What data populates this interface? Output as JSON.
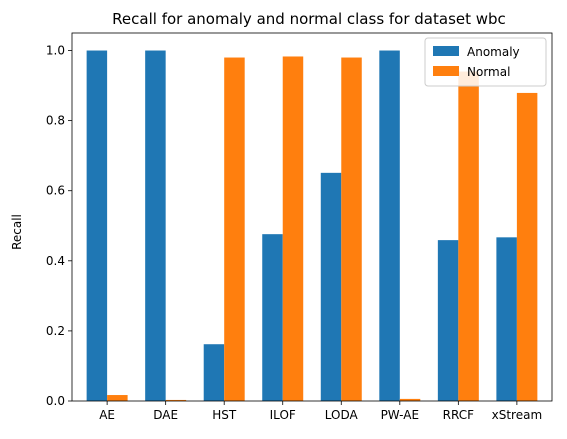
{
  "chart_data": {
    "type": "bar",
    "title": "Recall for anomaly and normal class for dataset wbc",
    "xlabel": "",
    "ylabel": "Recall",
    "categories": [
      "AE",
      "DAE",
      "HST",
      "ILOF",
      "LODA",
      "PW-AE",
      "RRCF",
      "xStream"
    ],
    "series": [
      {
        "name": "Anomaly",
        "color": "#1f77b4",
        "values": [
          1.0,
          1.0,
          0.162,
          0.476,
          0.651,
          1.0,
          0.459,
          0.467
        ]
      },
      {
        "name": "Normal",
        "color": "#ff7f0e",
        "values": [
          0.017,
          0.003,
          0.98,
          0.983,
          0.98,
          0.006,
          0.94,
          0.879
        ]
      }
    ],
    "ylim": [
      0,
      1.05
    ],
    "yticks": [
      0.0,
      0.2,
      0.4,
      0.6,
      0.8,
      1.0
    ],
    "ytick_labels": [
      "0.0",
      "0.2",
      "0.4",
      "0.6",
      "0.8",
      "1.0"
    ],
    "grid": false,
    "legend_position": "top-right"
  }
}
